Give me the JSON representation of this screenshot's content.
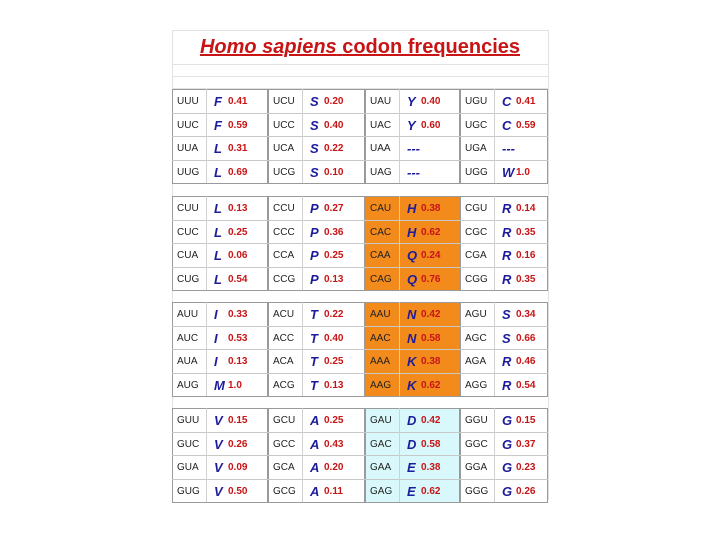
{
  "header": {
    "title_italic": "Homo sapiens",
    "title_rest": "codon frequencies"
  },
  "table": {
    "groups": [
      {
        "rows": [
          [
            {
              "codon": "UUU",
              "aa": "F",
              "freq": "0.41"
            },
            {
              "codon": "UCU",
              "aa": "S",
              "freq": "0.20"
            },
            {
              "codon": "UAU",
              "aa": "Y",
              "freq": "0.40"
            },
            {
              "codon": "UGU",
              "aa": "C",
              "freq": "0.41"
            }
          ],
          [
            {
              "codon": "UUC",
              "aa": "F",
              "freq": "0.59"
            },
            {
              "codon": "UCC",
              "aa": "S",
              "freq": "0.40"
            },
            {
              "codon": "UAC",
              "aa": "Y",
              "freq": "0.60"
            },
            {
              "codon": "UGC",
              "aa": "C",
              "freq": "0.59"
            }
          ],
          [
            {
              "codon": "UUA",
              "aa": "L",
              "freq": "0.31"
            },
            {
              "codon": "UCA",
              "aa": "S",
              "freq": "0.22"
            },
            {
              "codon": "UAA",
              "aa": "---"
            },
            {
              "codon": "UGA",
              "aa": "---"
            }
          ],
          [
            {
              "codon": "UUG",
              "aa": "L",
              "freq": "0.69"
            },
            {
              "codon": "UCG",
              "aa": "S",
              "freq": "0.10"
            },
            {
              "codon": "UAG",
              "aa": "---"
            },
            {
              "codon": "UGG",
              "aa": "W",
              "freq": "1.0"
            }
          ]
        ]
      },
      {
        "rows": [
          [
            {
              "codon": "CUU",
              "aa": "L",
              "freq": "0.13"
            },
            {
              "codon": "CCU",
              "aa": "P",
              "freq": "0.27"
            },
            {
              "codon": "CAU",
              "aa": "H",
              "freq": "0.38"
            },
            {
              "codon": "CGU",
              "aa": "R",
              "freq": "0.14"
            }
          ],
          [
            {
              "codon": "CUC",
              "aa": "L",
              "freq": "0.25"
            },
            {
              "codon": "CCC",
              "aa": "P",
              "freq": "0.36"
            },
            {
              "codon": "CAC",
              "aa": "H",
              "freq": "0.62"
            },
            {
              "codon": "CGC",
              "aa": "R",
              "freq": "0.35"
            }
          ],
          [
            {
              "codon": "CUA",
              "aa": "L",
              "freq": "0.06"
            },
            {
              "codon": "CCA",
              "aa": "P",
              "freq": "0.25"
            },
            {
              "codon": "CAA",
              "aa": "Q",
              "freq": "0.24"
            },
            {
              "codon": "CGA",
              "aa": "R",
              "freq": "0.16"
            }
          ],
          [
            {
              "codon": "CUG",
              "aa": "L",
              "freq": "0.54"
            },
            {
              "codon": "CCG",
              "aa": "P",
              "freq": "0.13"
            },
            {
              "codon": "CAG",
              "aa": "Q",
              "freq": "0.76"
            },
            {
              "codon": "CGG",
              "aa": "R",
              "freq": "0.35"
            }
          ]
        ]
      },
      {
        "rows": [
          [
            {
              "codon": "AUU",
              "aa": "I",
              "freq": "0.33"
            },
            {
              "codon": "ACU",
              "aa": "T",
              "freq": "0.22"
            },
            {
              "codon": "AAU",
              "aa": "N",
              "freq": "0.42"
            },
            {
              "codon": "AGU",
              "aa": "S",
              "freq": "0.34"
            }
          ],
          [
            {
              "codon": "AUC",
              "aa": "I",
              "freq": "0.53"
            },
            {
              "codon": "ACC",
              "aa": "T",
              "freq": "0.40"
            },
            {
              "codon": "AAC",
              "aa": "N",
              "freq": "0.58"
            },
            {
              "codon": "AGC",
              "aa": "S",
              "freq": "0.66"
            }
          ],
          [
            {
              "codon": "AUA",
              "aa": "I",
              "freq": "0.13"
            },
            {
              "codon": "ACA",
              "aa": "T",
              "freq": "0.25"
            },
            {
              "codon": "AAA",
              "aa": "K",
              "freq": "0.38"
            },
            {
              "codon": "AGA",
              "aa": "R",
              "freq": "0.46"
            }
          ],
          [
            {
              "codon": "AUG",
              "aa": "M",
              "freq": "1.0"
            },
            {
              "codon": "ACG",
              "aa": "T",
              "freq": "0.13"
            },
            {
              "codon": "AAG",
              "aa": "K",
              "freq": "0.62"
            },
            {
              "codon": "AGG",
              "aa": "R",
              "freq": "0.54"
            }
          ]
        ]
      },
      {
        "rows": [
          [
            {
              "codon": "GUU",
              "aa": "V",
              "freq": "0.15"
            },
            {
              "codon": "GCU",
              "aa": "A",
              "freq": "0.25"
            },
            {
              "codon": "GAU",
              "aa": "D",
              "freq": "0.42"
            },
            {
              "codon": "GGU",
              "aa": "G",
              "freq": "0.15"
            }
          ],
          [
            {
              "codon": "GUC",
              "aa": "V",
              "freq": "0.26"
            },
            {
              "codon": "GCC",
              "aa": "A",
              "freq": "0.43"
            },
            {
              "codon": "GAC",
              "aa": "D",
              "freq": "0.58"
            },
            {
              "codon": "GGC",
              "aa": "G",
              "freq": "0.37"
            }
          ],
          [
            {
              "codon": "GUA",
              "aa": "V",
              "freq": "0.09"
            },
            {
              "codon": "GCA",
              "aa": "A",
              "freq": "0.20"
            },
            {
              "codon": "GAA",
              "aa": "E",
              "freq": "0.38"
            },
            {
              "codon": "GGA",
              "aa": "G",
              "freq": "0.23"
            }
          ],
          [
            {
              "codon": "GUG",
              "aa": "V",
              "freq": "0.50"
            },
            {
              "codon": "GCG",
              "aa": "A",
              "freq": "0.11"
            },
            {
              "codon": "GAG",
              "aa": "E",
              "freq": "0.62"
            },
            {
              "codon": "GGG",
              "aa": "G",
              "freq": "0.26"
            }
          ]
        ]
      }
    ]
  }
}
